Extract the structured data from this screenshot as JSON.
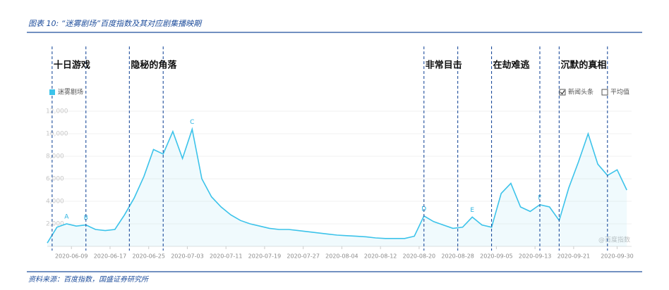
{
  "chart_data": {
    "type": "area",
    "title": "图表 10: “迷雾剧场”百度指数及其对应剧集播映期",
    "source": "资料来源：百度指数，国盛证券研究所",
    "watermark": "@百度指数",
    "x": [
      "2020-06-04",
      "2020-06-06",
      "2020-06-08",
      "2020-06-10",
      "2020-06-12",
      "2020-06-14",
      "2020-06-16",
      "2020-06-18",
      "2020-06-20",
      "2020-06-22",
      "2020-06-24",
      "2020-06-26",
      "2020-06-28",
      "2020-06-30",
      "2020-07-02",
      "2020-07-04",
      "2020-07-06",
      "2020-07-08",
      "2020-07-10",
      "2020-07-12",
      "2020-07-14",
      "2020-07-16",
      "2020-07-18",
      "2020-07-20",
      "2020-07-22",
      "2020-07-24",
      "2020-07-26",
      "2020-07-28",
      "2020-07-30",
      "2020-08-01",
      "2020-08-03",
      "2020-08-05",
      "2020-08-07",
      "2020-08-09",
      "2020-08-11",
      "2020-08-13",
      "2020-08-15",
      "2020-08-17",
      "2020-08-19",
      "2020-08-21",
      "2020-08-23",
      "2020-08-25",
      "2020-08-27",
      "2020-08-29",
      "2020-08-31",
      "2020-09-02",
      "2020-09-04",
      "2020-09-06",
      "2020-09-08",
      "2020-09-10",
      "2020-09-12",
      "2020-09-14",
      "2020-09-16",
      "2020-09-18",
      "2020-09-20",
      "2020-09-22",
      "2020-09-24",
      "2020-09-26",
      "2020-09-28",
      "2020-09-30",
      "2020-10-02"
    ],
    "series": [
      {
        "name": "迷雾剧场",
        "color": "#3cc3ea",
        "values": [
          300,
          1700,
          2000,
          1800,
          1900,
          1500,
          1400,
          1500,
          2800,
          4300,
          6200,
          8600,
          8200,
          10200,
          7800,
          10400,
          6000,
          4400,
          3500,
          2800,
          2300,
          2000,
          1800,
          1600,
          1500,
          1500,
          1400,
          1300,
          1200,
          1100,
          1000,
          950,
          900,
          850,
          750,
          700,
          700,
          700,
          900,
          2700,
          2200,
          1900,
          1600,
          1700,
          2600,
          1900,
          1700,
          4700,
          5600,
          3500,
          3100,
          3700,
          3500,
          2300,
          5200,
          7500,
          10000,
          7300,
          6300,
          6800,
          5000
        ]
      }
    ],
    "xlim": [
      "2020-06-04",
      "2020-10-03"
    ],
    "xticks": [
      "2020-06-09",
      "2020-06-17",
      "2020-06-25",
      "2020-07-03",
      "2020-07-11",
      "2020-07-19",
      "2020-07-27",
      "2020-08-04",
      "2020-08-12",
      "2020-08-20",
      "2020-08-28",
      "2020-09-05",
      "2020-09-13",
      "2020-09-21",
      "2020-09-30"
    ],
    "ylim": [
      0,
      12000
    ],
    "yticks": [
      {
        "value": 2000,
        "label": "2,000"
      },
      {
        "value": 4000,
        "label": "4,000"
      },
      {
        "value": 6000,
        "label": "6,000"
      },
      {
        "value": 8000,
        "label": "8,000"
      },
      {
        "value": 10000,
        "label": "10,000"
      },
      {
        "value": 12000,
        "label": "12,000"
      }
    ],
    "grid": true,
    "annotations": [
      {
        "text": "A",
        "x": "2020-06-08"
      },
      {
        "text": "B",
        "x": "2020-06-12"
      },
      {
        "text": "C",
        "x": "2020-07-04"
      },
      {
        "text": "D",
        "x": "2020-08-21"
      },
      {
        "text": "E",
        "x": "2020-08-31"
      },
      {
        "text": "F",
        "x": "2020-09-14"
      }
    ],
    "shows": [
      {
        "name": "十日游戏",
        "start": "2020-06-05",
        "end": "2020-06-12"
      },
      {
        "name": "隐秘的角落",
        "start": "2020-06-21",
        "end": "2020-06-28"
      },
      {
        "name": "非常目击",
        "start": "2020-08-21",
        "end": "2020-08-28"
      },
      {
        "name": "在劫难逃",
        "start": "2020-09-04",
        "end": "2020-09-14"
      },
      {
        "name": "沉默的真相",
        "start": "2020-09-18",
        "end": "2020-09-28"
      }
    ],
    "legend_toggles": [
      {
        "name": "新闻头条",
        "checked": true
      },
      {
        "name": "平均值",
        "checked": false
      }
    ]
  }
}
